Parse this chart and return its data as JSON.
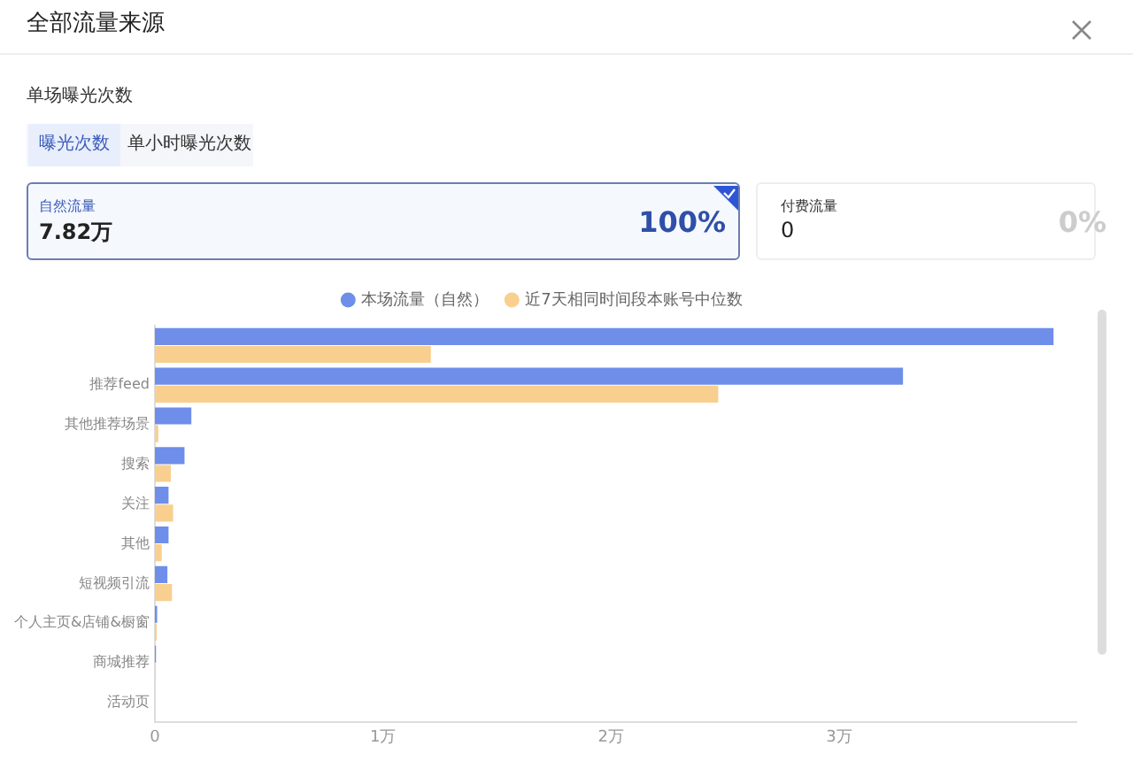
{
  "chart_data": {
    "type": "bar",
    "orientation": "horizontal",
    "title": "全部流量来源",
    "subtitle": "单场曝光次数",
    "annotations": [
      "曝光次数",
      "单小时曝光次数",
      "自然流量",
      "7.82万",
      "100%",
      "付费流量",
      "0",
      "0%"
    ],
    "categories": [
      null,
      "推荐feed",
      "其他推荐场景",
      "搜索",
      "关注",
      "其他",
      "短视频引流",
      "个人主页&店铺&橱窗",
      "商城推荐",
      "活动页"
    ],
    "series": [
      {
        "name": "本场流量（自然）",
        "color": "#6e8eea",
        "values": [
          3.94,
          3.28,
          0.16,
          0.13,
          0.06,
          0.06,
          0.055,
          0.01,
          0.005,
          0
        ]
      },
      {
        "name": "近7天相同时间段本账号中位数",
        "color": "#f8cf8f",
        "values": [
          1.21,
          2.47,
          0.015,
          0.07,
          0.08,
          0.03,
          0.075,
          0.008,
          0.003,
          0
        ]
      }
    ],
    "xlim": [
      0,
      4.04
    ],
    "xticks": [
      0,
      {
        "value": 1,
        "label": "1万"
      },
      {
        "value": 2,
        "label": "2万"
      },
      {
        "value": 3,
        "label": "3万"
      }
    ],
    "legend": "top",
    "grid": false
  }
}
